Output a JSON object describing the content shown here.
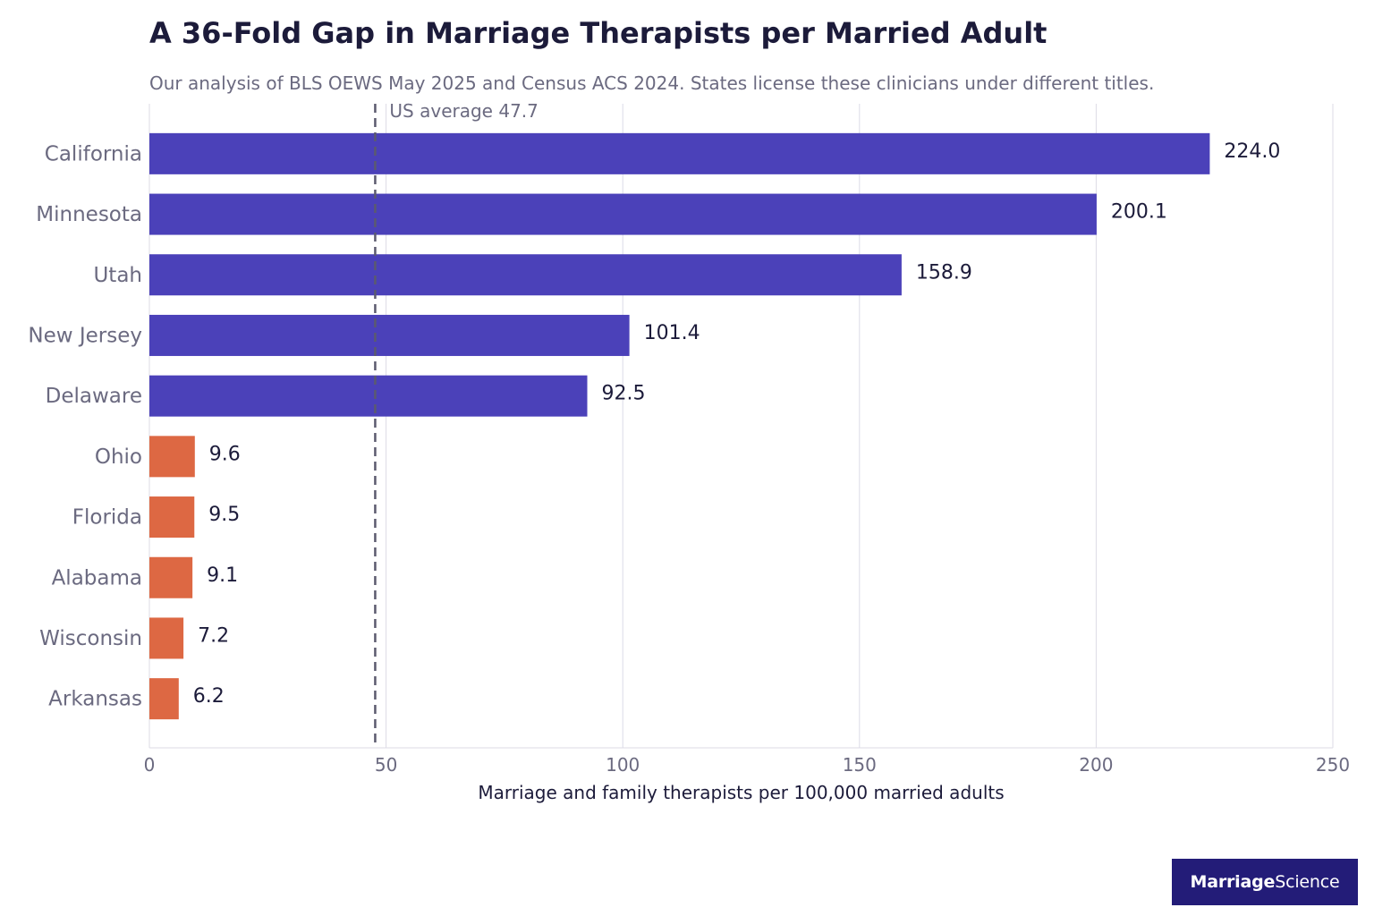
{
  "header": {
    "title": "A 36-Fold Gap in Marriage Therapists per Married Adult",
    "subtitle": "Our analysis of BLS OEWS May 2025 and Census ACS 2024. States license these clinicians under different titles."
  },
  "brand": {
    "part1": "Marriage",
    "part2": "Science",
    "background": "#231c78"
  },
  "chart_data": {
    "type": "bar",
    "orientation": "horizontal",
    "categories": [
      "California",
      "Minnesota",
      "Utah",
      "New Jersey",
      "Delaware",
      "Ohio",
      "Florida",
      "Alabama",
      "Wisconsin",
      "Arkansas"
    ],
    "values": [
      224.0,
      200.1,
      158.9,
      101.4,
      92.5,
      9.6,
      9.5,
      9.1,
      7.2,
      6.2
    ],
    "value_labels": [
      "224.0",
      "200.1",
      "158.9",
      "101.4",
      "92.5",
      "9.6",
      "9.5",
      "9.1",
      "7.2",
      "6.2"
    ],
    "bar_colors": [
      "#4b41b9",
      "#4b41b9",
      "#4b41b9",
      "#4b41b9",
      "#4b41b9",
      "#dd6843",
      "#dd6843",
      "#dd6843",
      "#dd6843",
      "#dd6843"
    ],
    "xlabel": "Marriage and family therapists per 100,000 married adults",
    "ylabel": "",
    "xlim": [
      0,
      250
    ],
    "xticks": [
      0,
      50,
      100,
      150,
      200,
      250
    ],
    "xtick_labels": [
      "0",
      "50",
      "100",
      "150",
      "200",
      "250"
    ],
    "grid": "vertical",
    "reference_line": {
      "value": 47.7,
      "label": "US average 47.7",
      "style": "dashed",
      "color": "#5b5a6e"
    },
    "colors": {
      "top_group": "#4b41b9",
      "bottom_group": "#dd6843",
      "grid": "#dcdbe6",
      "category_text": "#6b6a80",
      "value_text": "#1c1b3a"
    }
  }
}
